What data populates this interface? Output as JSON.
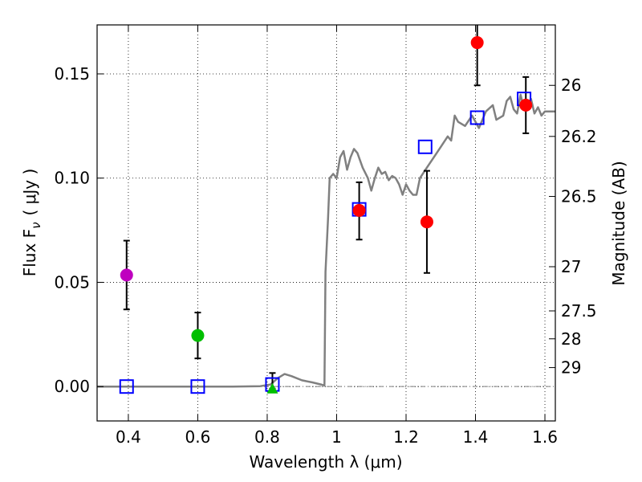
{
  "chart_data": {
    "type": "scatter",
    "xlabel": "Wavelength  λ (μm)",
    "ylabel_left": "Flux  F",
    "ylabel_left_sub": "ν",
    "ylabel_left_units": "( μJy )",
    "ylabel_right": "Magnitude (AB)",
    "xlim": [
      0.31,
      1.63
    ],
    "ylim": [
      -0.0165,
      0.1735
    ],
    "grid": true,
    "x_ticks": [
      {
        "value": 0.4,
        "label": "0.4"
      },
      {
        "value": 0.6,
        "label": "0.6"
      },
      {
        "value": 0.8,
        "label": "0.8"
      },
      {
        "value": 1.0,
        "label": "1"
      },
      {
        "value": 1.2,
        "label": "1.2"
      },
      {
        "value": 1.4,
        "label": "1.4"
      },
      {
        "value": 1.6,
        "label": "1.6"
      }
    ],
    "y_ticks": [
      {
        "value": 0.0,
        "label": "0.00"
      },
      {
        "value": 0.05,
        "label": "0.05"
      },
      {
        "value": 0.1,
        "label": "0.10"
      },
      {
        "value": 0.15,
        "label": "0.15"
      }
    ],
    "magnitude_ticks": [
      {
        "value": 0.1445,
        "label": "26"
      },
      {
        "value": 0.12,
        "label": "26.2"
      },
      {
        "value": 0.0912,
        "label": "26.5"
      },
      {
        "value": 0.0575,
        "label": "27"
      },
      {
        "value": 0.0363,
        "label": "27.5"
      },
      {
        "value": 0.0229,
        "label": "28"
      },
      {
        "value": 0.0091,
        "label": "29"
      }
    ],
    "sed_model": {
      "name": "model spectrum",
      "color": "#808080",
      "points": [
        [
          0.31,
          0.0
        ],
        [
          0.5,
          0.0
        ],
        [
          0.7,
          0.0
        ],
        [
          0.78,
          0.0002
        ],
        [
          0.81,
          0.001
        ],
        [
          0.83,
          0.004
        ],
        [
          0.85,
          0.006
        ],
        [
          0.87,
          0.005
        ],
        [
          0.9,
          0.003
        ],
        [
          0.93,
          0.002
        ],
        [
          0.955,
          0.001
        ],
        [
          0.965,
          0.0005
        ],
        [
          0.968,
          0.055
        ],
        [
          0.975,
          0.08
        ],
        [
          0.98,
          0.1
        ],
        [
          0.99,
          0.102
        ],
        [
          1.0,
          0.1
        ],
        [
          1.01,
          0.11
        ],
        [
          1.02,
          0.113
        ],
        [
          1.03,
          0.104
        ],
        [
          1.04,
          0.11
        ],
        [
          1.05,
          0.114
        ],
        [
          1.06,
          0.112
        ],
        [
          1.075,
          0.105
        ],
        [
          1.09,
          0.1
        ],
        [
          1.1,
          0.094
        ],
        [
          1.11,
          0.1
        ],
        [
          1.12,
          0.105
        ],
        [
          1.13,
          0.102
        ],
        [
          1.14,
          0.103
        ],
        [
          1.15,
          0.099
        ],
        [
          1.16,
          0.101
        ],
        [
          1.17,
          0.1
        ],
        [
          1.18,
          0.097
        ],
        [
          1.19,
          0.092
        ],
        [
          1.2,
          0.097
        ],
        [
          1.21,
          0.094
        ],
        [
          1.22,
          0.092
        ],
        [
          1.23,
          0.092
        ],
        [
          1.24,
          0.1
        ],
        [
          1.26,
          0.105
        ],
        [
          1.28,
          0.11
        ],
        [
          1.3,
          0.115
        ],
        [
          1.32,
          0.12
        ],
        [
          1.33,
          0.118
        ],
        [
          1.34,
          0.13
        ],
        [
          1.35,
          0.127
        ],
        [
          1.37,
          0.125
        ],
        [
          1.39,
          0.13
        ],
        [
          1.41,
          0.124
        ],
        [
          1.43,
          0.132
        ],
        [
          1.45,
          0.135
        ],
        [
          1.46,
          0.128
        ],
        [
          1.48,
          0.13
        ],
        [
          1.49,
          0.137
        ],
        [
          1.5,
          0.139
        ],
        [
          1.51,
          0.133
        ],
        [
          1.52,
          0.131
        ],
        [
          1.53,
          0.14
        ],
        [
          1.54,
          0.133
        ],
        [
          1.55,
          0.135
        ],
        [
          1.56,
          0.138
        ],
        [
          1.57,
          0.131
        ],
        [
          1.58,
          0.134
        ],
        [
          1.59,
          0.13
        ],
        [
          1.6,
          0.132
        ],
        [
          1.63,
          0.132
        ]
      ]
    },
    "model_photometry": {
      "name": "model photometry",
      "marker": "square",
      "color": "#0000ff",
      "points": [
        [
          0.395,
          0.0
        ],
        [
          0.6,
          0.0
        ],
        [
          0.815,
          0.001
        ],
        [
          1.065,
          0.085
        ],
        [
          1.255,
          0.115
        ],
        [
          1.405,
          0.129
        ],
        [
          1.54,
          0.138
        ]
      ]
    },
    "observations": {
      "name": "observed photometry",
      "points": [
        {
          "x": 0.395,
          "y": 0.0535,
          "yerr_low": 0.0165,
          "yerr_high": 0.0165,
          "color": "#bf00bf",
          "marker": "circle"
        },
        {
          "x": 0.6,
          "y": 0.0245,
          "yerr_low": 0.011,
          "yerr_high": 0.011,
          "color": "#00bf00",
          "marker": "circle"
        },
        {
          "x": 0.815,
          "y": -0.001,
          "yerr_low": 0.0,
          "yerr_high": 0.0075,
          "color": "#00bf00",
          "marker": "triangle"
        },
        {
          "x": 1.065,
          "y": 0.0845,
          "yerr_low": 0.014,
          "yerr_high": 0.0135,
          "color": "#ff0000",
          "marker": "circle"
        },
        {
          "x": 1.26,
          "y": 0.079,
          "yerr_low": 0.0245,
          "yerr_high": 0.0245,
          "color": "#ff0000",
          "marker": "circle"
        },
        {
          "x": 1.405,
          "y": 0.165,
          "yerr_low": 0.0205,
          "yerr_high": 0.0205,
          "color": "#ff0000",
          "marker": "circle"
        },
        {
          "x": 1.545,
          "y": 0.135,
          "yerr_low": 0.0135,
          "yerr_high": 0.0135,
          "color": "#ff0000",
          "marker": "circle"
        }
      ]
    },
    "reference_line": {
      "y": 0.0,
      "style": "dash-dot",
      "color": "#808080"
    }
  }
}
